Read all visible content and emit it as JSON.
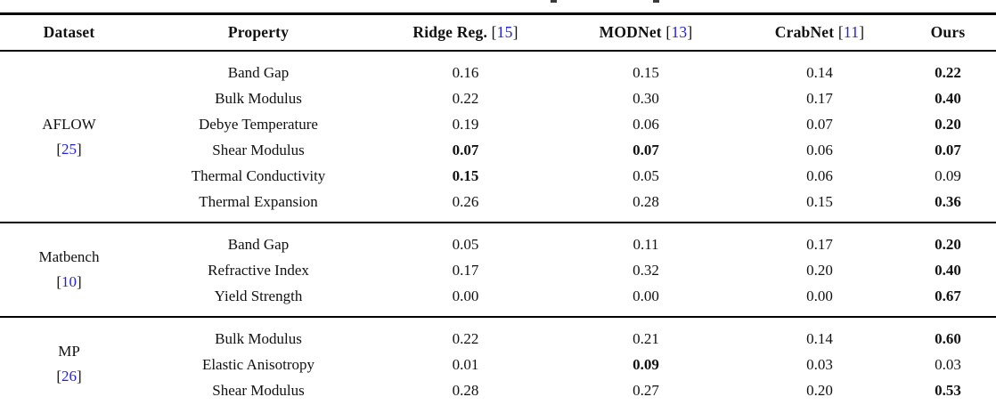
{
  "page": {
    "background": "#ffffff"
  },
  "colors": {
    "text": "#111111",
    "rule": "#000000",
    "citation_blue": "#2222dd"
  },
  "table": {
    "columns": [
      {
        "key": "dataset",
        "label": "Dataset",
        "cite": null
      },
      {
        "key": "property",
        "label": "Property",
        "cite": null
      },
      {
        "key": "ridge",
        "label": "Ridge Reg.",
        "cite": "15"
      },
      {
        "key": "modnet",
        "label": "MODNet",
        "cite": "13"
      },
      {
        "key": "crabnet",
        "label": "CrabNet",
        "cite": "11"
      },
      {
        "key": "ours",
        "label": "Ours",
        "cite": null
      }
    ],
    "groups": [
      {
        "dataset": "AFLOW",
        "cite": "25",
        "rows": [
          {
            "property": "Band Gap",
            "values": [
              "0.16",
              "0.15",
              "0.14",
              "0.22"
            ],
            "bold": [
              false,
              false,
              false,
              true
            ]
          },
          {
            "property": "Bulk Modulus",
            "values": [
              "0.22",
              "0.30",
              "0.17",
              "0.40"
            ],
            "bold": [
              false,
              false,
              false,
              true
            ]
          },
          {
            "property": "Debye Temperature",
            "values": [
              "0.19",
              "0.06",
              "0.07",
              "0.20"
            ],
            "bold": [
              false,
              false,
              false,
              true
            ]
          },
          {
            "property": "Shear Modulus",
            "values": [
              "0.07",
              "0.07",
              "0.06",
              "0.07"
            ],
            "bold": [
              true,
              true,
              false,
              true
            ]
          },
          {
            "property": "Thermal Conductivity",
            "values": [
              "0.15",
              "0.05",
              "0.06",
              "0.09"
            ],
            "bold": [
              true,
              false,
              false,
              false
            ]
          },
          {
            "property": "Thermal Expansion",
            "values": [
              "0.26",
              "0.28",
              "0.15",
              "0.36"
            ],
            "bold": [
              false,
              false,
              false,
              true
            ]
          }
        ]
      },
      {
        "dataset": "Matbench",
        "cite": "10",
        "rows": [
          {
            "property": "Band Gap",
            "values": [
              "0.05",
              "0.11",
              "0.17",
              "0.20"
            ],
            "bold": [
              false,
              false,
              false,
              true
            ]
          },
          {
            "property": "Refractive Index",
            "values": [
              "0.17",
              "0.32",
              "0.20",
              "0.40"
            ],
            "bold": [
              false,
              false,
              false,
              true
            ]
          },
          {
            "property": "Yield Strength",
            "values": [
              "0.00",
              "0.00",
              "0.00",
              "0.67"
            ],
            "bold": [
              false,
              false,
              false,
              true
            ]
          }
        ]
      },
      {
        "dataset": "MP",
        "cite": "26",
        "rows": [
          {
            "property": "Bulk Modulus",
            "values": [
              "0.22",
              "0.21",
              "0.14",
              "0.60"
            ],
            "bold": [
              false,
              false,
              false,
              true
            ]
          },
          {
            "property": "Elastic Anisotropy",
            "values": [
              "0.01",
              "0.09",
              "0.03",
              "0.03"
            ],
            "bold": [
              false,
              true,
              false,
              false
            ]
          },
          {
            "property": "Shear Modulus",
            "values": [
              "0.28",
              "0.27",
              "0.20",
              "0.53"
            ],
            "bold": [
              false,
              false,
              false,
              true
            ]
          }
        ]
      }
    ]
  },
  "chart_data": {
    "type": "table",
    "columns": [
      "Dataset",
      "Property",
      "Ridge Reg. [15]",
      "MODNet [13]",
      "CrabNet [11]",
      "Ours"
    ],
    "rows": [
      [
        "AFLOW [25]",
        "Band Gap",
        0.16,
        0.15,
        0.14,
        0.22
      ],
      [
        "AFLOW [25]",
        "Bulk Modulus",
        0.22,
        0.3,
        0.17,
        0.4
      ],
      [
        "AFLOW [25]",
        "Debye Temperature",
        0.19,
        0.06,
        0.07,
        0.2
      ],
      [
        "AFLOW [25]",
        "Shear Modulus",
        0.07,
        0.07,
        0.06,
        0.07
      ],
      [
        "AFLOW [25]",
        "Thermal Conductivity",
        0.15,
        0.05,
        0.06,
        0.09
      ],
      [
        "AFLOW [25]",
        "Thermal Expansion",
        0.26,
        0.28,
        0.15,
        0.36
      ],
      [
        "Matbench [10]",
        "Band Gap",
        0.05,
        0.11,
        0.17,
        0.2
      ],
      [
        "Matbench [10]",
        "Refractive Index",
        0.17,
        0.32,
        0.2,
        0.4
      ],
      [
        "Matbench [10]",
        "Yield Strength",
        0.0,
        0.0,
        0.0,
        0.67
      ],
      [
        "MP [26]",
        "Bulk Modulus",
        0.22,
        0.21,
        0.14,
        0.6
      ],
      [
        "MP [26]",
        "Elastic Anisotropy",
        0.01,
        0.09,
        0.03,
        0.03
      ],
      [
        "MP [26]",
        "Shear Modulus",
        0.28,
        0.27,
        0.2,
        0.53
      ]
    ],
    "bold_cells_note": "Best (bold) per row: see table.groups[].rows[].bold flags"
  }
}
